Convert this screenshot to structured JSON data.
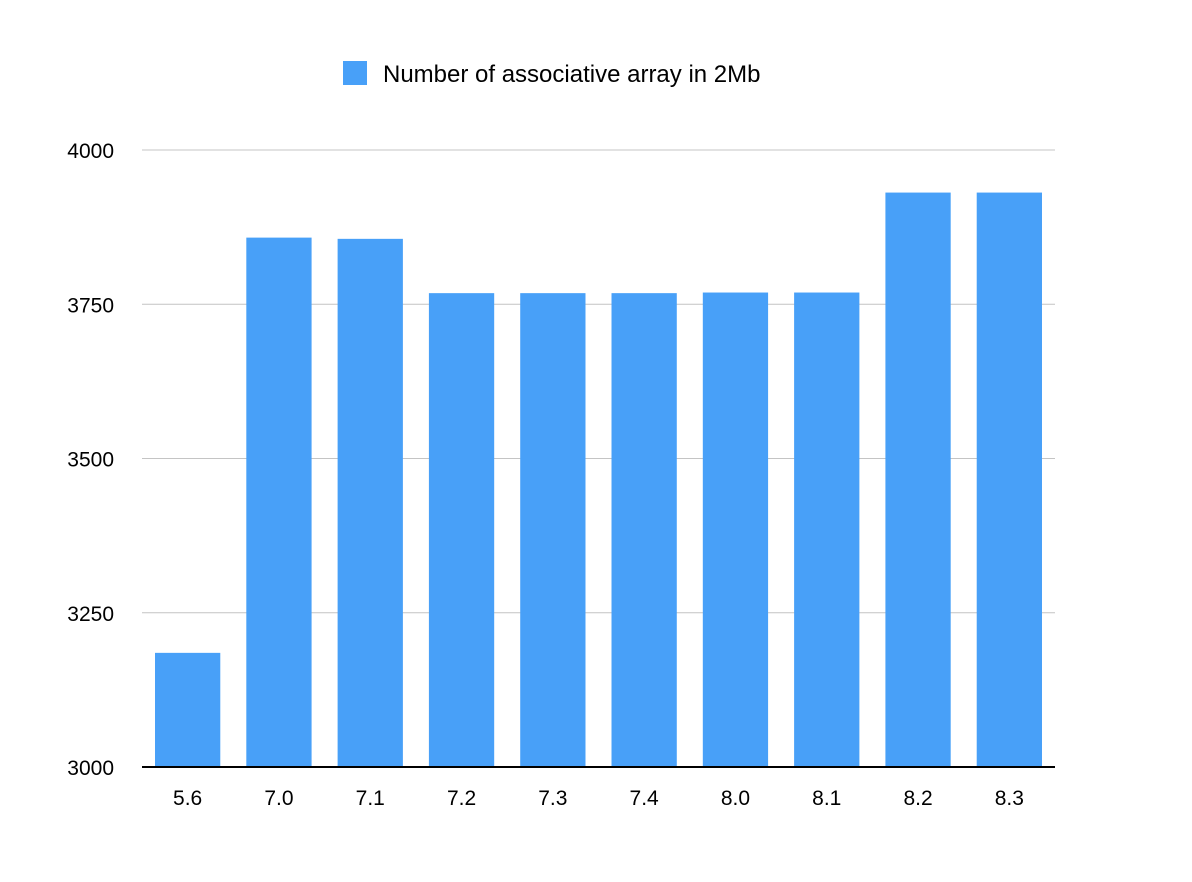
{
  "chart_data": {
    "type": "bar",
    "legend": {
      "position": "top-center"
    },
    "series": [
      {
        "name": "Number of associative array in 2Mb",
        "color": "#48a0f8",
        "values": [
          3185,
          3858,
          3856,
          3768,
          3768,
          3768,
          3769,
          3769,
          3931,
          3931
        ]
      }
    ],
    "categories": [
      "5.6",
      "7.0",
      "7.1",
      "7.2",
      "7.3",
      "7.4",
      "8.0",
      "8.1",
      "8.2",
      "8.3"
    ],
    "ylim": [
      3000,
      4000
    ],
    "yticks": [
      3000,
      3250,
      3500,
      3750,
      4000
    ],
    "grid": true,
    "xlabel": "",
    "ylabel": ""
  }
}
